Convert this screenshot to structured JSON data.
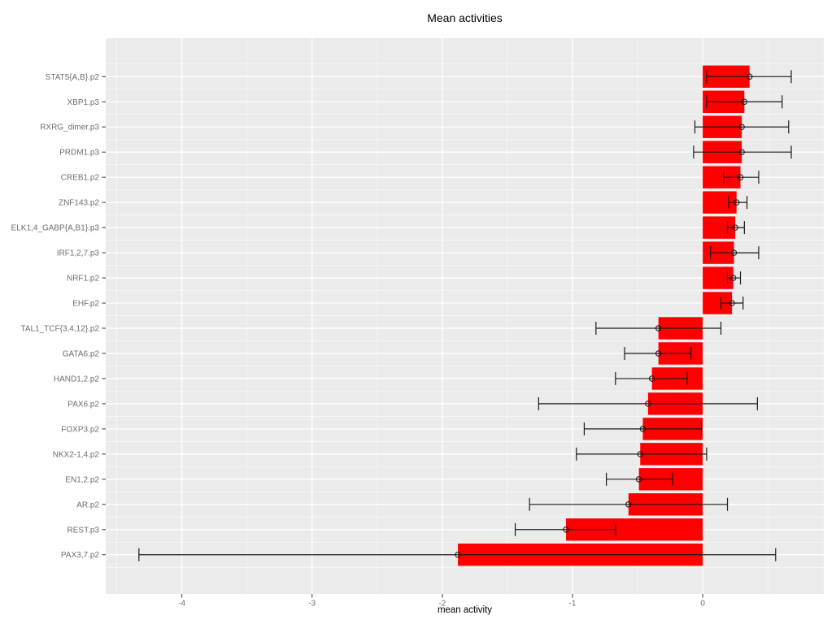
{
  "title": "Mean activities",
  "chart_data": {
    "type": "bar",
    "orientation": "horizontal",
    "title": "Mean activities",
    "xlabel": "mean activity",
    "ylabel": "",
    "xlim": [
      -4.585,
      0.93
    ],
    "x_major_ticks": [
      -4,
      -3,
      -2,
      -1,
      0
    ],
    "x_minor_ticks": [
      -4.5,
      -3.5,
      -2.5,
      -1.5,
      -0.5,
      0.5
    ],
    "grid": "major+minor, white on grey panel",
    "legend": false,
    "colors": {
      "bar_fill": "#FF0000",
      "panel_background": "#EBEBEB",
      "grid_major": "#FFFFFF",
      "grid_minor": "#FFFFFF",
      "error_bar": "#1A1A1A",
      "tick_mark": "#333333",
      "tick_label": "#6E6E6E",
      "title_text": "#000000"
    },
    "rows": [
      {
        "label": "STAT5{A,B}.p2",
        "mean": 0.36,
        "lo": 0.03,
        "hi": 0.68
      },
      {
        "label": "XBP1.p3",
        "mean": 0.32,
        "lo": 0.03,
        "hi": 0.61
      },
      {
        "label": "RXRG_dimer.p3",
        "mean": 0.3,
        "lo": -0.06,
        "hi": 0.66
      },
      {
        "label": "PRDM1.p3",
        "mean": 0.3,
        "lo": -0.07,
        "hi": 0.68
      },
      {
        "label": "CREB1.p2",
        "mean": 0.29,
        "lo": 0.16,
        "hi": 0.43
      },
      {
        "label": "ZNF143.p2",
        "mean": 0.26,
        "lo": 0.2,
        "hi": 0.34
      },
      {
        "label": "ELK1,4_GABP{A,B1}.p3",
        "mean": 0.25,
        "lo": 0.19,
        "hi": 0.32
      },
      {
        "label": "IRF1,2,7.p3",
        "mean": 0.24,
        "lo": 0.06,
        "hi": 0.43
      },
      {
        "label": "NRF1.p2",
        "mean": 0.235,
        "lo": 0.19,
        "hi": 0.29
      },
      {
        "label": "EHF.p2",
        "mean": 0.225,
        "lo": 0.14,
        "hi": 0.31
      },
      {
        "label": "TAL1_TCF{3,4,12}.p2",
        "mean": -0.34,
        "lo": -0.82,
        "hi": 0.14
      },
      {
        "label": "GATA6.p2",
        "mean": -0.34,
        "lo": -0.6,
        "hi": -0.09
      },
      {
        "label": "HAND1,2.p2",
        "mean": -0.39,
        "lo": -0.67,
        "hi": -0.12
      },
      {
        "label": "PAX6.p2",
        "mean": -0.42,
        "lo": -1.26,
        "hi": 0.42
      },
      {
        "label": "FOXP3.p2",
        "mean": -0.46,
        "lo": -0.91,
        "hi": -0.01
      },
      {
        "label": "NKX2-1,4.p2",
        "mean": -0.48,
        "lo": -0.97,
        "hi": 0.03
      },
      {
        "label": "EN1,2.p2",
        "mean": -0.49,
        "lo": -0.74,
        "hi": -0.23
      },
      {
        "label": "AR.p2",
        "mean": -0.57,
        "lo": -1.33,
        "hi": 0.19
      },
      {
        "label": "REST.p3",
        "mean": -1.05,
        "lo": -1.44,
        "hi": -0.67
      },
      {
        "label": "PAX3,7.p2",
        "mean": -1.88,
        "lo": -4.33,
        "hi": 0.56
      }
    ]
  }
}
